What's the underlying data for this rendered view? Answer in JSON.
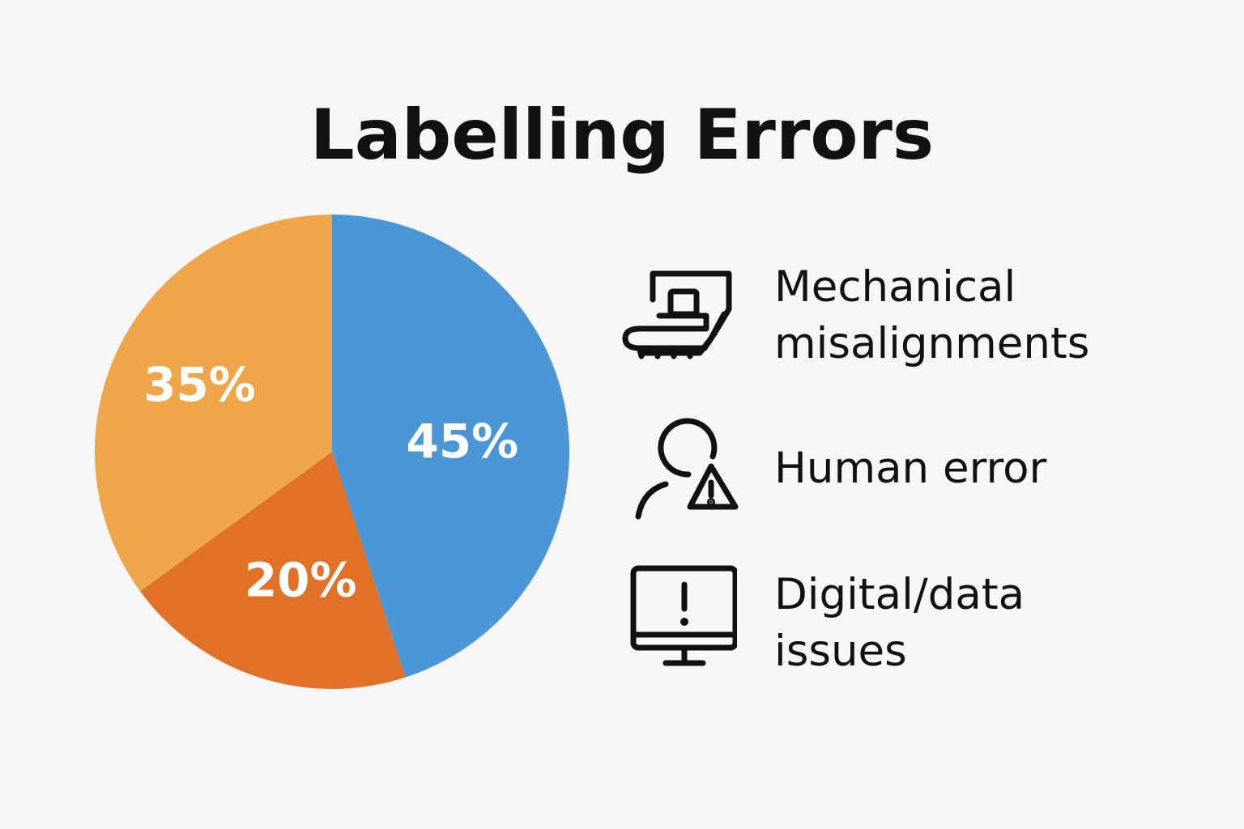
{
  "chart_data": {
    "type": "pie",
    "title": "Labelling Errors",
    "slices": [
      {
        "name": "Mechanical misalignments",
        "value": 45,
        "label": "45%",
        "color": "#4a96d6"
      },
      {
        "name": "Human error",
        "value": 20,
        "label": "20%",
        "color": "#e07126"
      },
      {
        "name": "Digital/data issues",
        "value": 35,
        "label": "35%",
        "color": "#efa64a"
      }
    ]
  },
  "legend": [
    {
      "icon": "machine-icon",
      "text": "Mechanical\nmisalignments"
    },
    {
      "icon": "person-warning-icon",
      "text": "Human error"
    },
    {
      "icon": "monitor-alert-icon",
      "text": "Digital/data\nissues"
    }
  ]
}
